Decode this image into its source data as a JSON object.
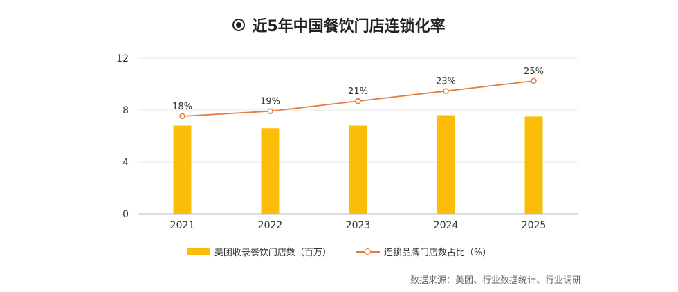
{
  "title": "近5年中国餐饮门店连锁化率",
  "source": "数据来源：美团、行业数据统计、行业调研",
  "colors": {
    "bar": "#fbbd07",
    "line": "#e27c3e",
    "grid": "#e8e8e8",
    "axis": "#bbbbbb"
  },
  "chart_data": {
    "type": "bar",
    "title": "近5年中国餐饮门店连锁化率",
    "categories": [
      "2021",
      "2022",
      "2023",
      "2024",
      "2025"
    ],
    "ylim": [
      0,
      12
    ],
    "yticks": [
      "0",
      "4",
      "8",
      "12"
    ],
    "ytick_values": [
      0,
      4,
      8,
      12
    ],
    "grid": true,
    "legend_position": "bottom",
    "series": [
      {
        "name": "美团收录餐饮门店数（百万）",
        "type": "bar",
        "values": [
          6.8,
          6.6,
          6.8,
          7.6,
          7.5
        ]
      },
      {
        "name": "连锁品牌门店数占比（%）",
        "type": "line",
        "values": [
          18,
          19,
          21,
          23,
          25
        ],
        "labels": [
          "18%",
          "19%",
          "21%",
          "23%",
          "25%"
        ]
      }
    ]
  }
}
